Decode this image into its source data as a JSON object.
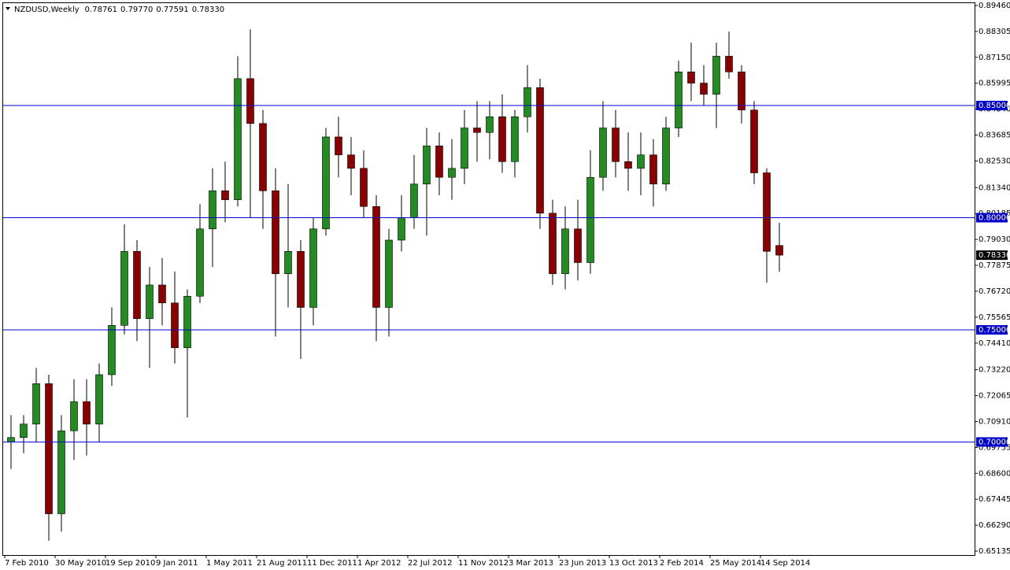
{
  "chart_data": {
    "type": "candlestick",
    "title": "NZDUSD,Weekly",
    "header_values": [
      "0.78761",
      "0.79770",
      "0.77591",
      "0.78330"
    ],
    "up_color": "#228b22",
    "down_color": "#8b0000",
    "wick_color": "#000000",
    "level_color": "#0000cd",
    "categories": [
      "7 Feb 2010",
      null,
      null,
      null,
      "30 May 2010",
      null,
      null,
      null,
      "19 Sep 2010",
      null,
      null,
      null,
      "9 Jan 2011",
      null,
      null,
      null,
      "1 May 2011",
      null,
      null,
      null,
      "21 Aug 2011",
      null,
      null,
      null,
      "11 Dec 2011",
      null,
      null,
      null,
      "1 Apr 2012",
      null,
      null,
      null,
      "22 Jul 2012",
      null,
      null,
      null,
      "11 Nov 2012",
      null,
      null,
      null,
      "3 Mar 2013",
      null,
      null,
      null,
      "23 Jun 2013",
      null,
      null,
      null,
      "13 Oct 2013",
      null,
      null,
      null,
      "2 Feb 2014",
      null,
      null,
      null,
      "25 May 2014",
      null,
      null,
      null,
      "14 Sep 2014",
      null
    ],
    "ohlc": [
      [
        0.7,
        0.712,
        0.688,
        0.702
      ],
      [
        0.702,
        0.712,
        0.695,
        0.708
      ],
      [
        0.708,
        0.733,
        0.7,
        0.726
      ],
      [
        0.726,
        0.73,
        0.656,
        0.668
      ],
      [
        0.668,
        0.712,
        0.66,
        0.705
      ],
      [
        0.705,
        0.728,
        0.692,
        0.718
      ],
      [
        0.718,
        0.728,
        0.694,
        0.708
      ],
      [
        0.708,
        0.735,
        0.7,
        0.73
      ],
      [
        0.73,
        0.76,
        0.725,
        0.752
      ],
      [
        0.752,
        0.797,
        0.748,
        0.785
      ],
      [
        0.785,
        0.79,
        0.745,
        0.755
      ],
      [
        0.755,
        0.778,
        0.733,
        0.77
      ],
      [
        0.77,
        0.782,
        0.752,
        0.762
      ],
      [
        0.762,
        0.776,
        0.735,
        0.742
      ],
      [
        0.742,
        0.768,
        0.711,
        0.765
      ],
      [
        0.765,
        0.806,
        0.762,
        0.795
      ],
      [
        0.795,
        0.822,
        0.778,
        0.812
      ],
      [
        0.812,
        0.825,
        0.798,
        0.808
      ],
      [
        0.808,
        0.872,
        0.805,
        0.862
      ],
      [
        0.862,
        0.884,
        0.8,
        0.842
      ],
      [
        0.842,
        0.848,
        0.795,
        0.812
      ],
      [
        0.812,
        0.822,
        0.747,
        0.775
      ],
      [
        0.775,
        0.815,
        0.76,
        0.785
      ],
      [
        0.785,
        0.79,
        0.737,
        0.76
      ],
      [
        0.76,
        0.8,
        0.752,
        0.795
      ],
      [
        0.795,
        0.84,
        0.792,
        0.836
      ],
      [
        0.836,
        0.845,
        0.818,
        0.828
      ],
      [
        0.828,
        0.836,
        0.81,
        0.822
      ],
      [
        0.822,
        0.83,
        0.8,
        0.805
      ],
      [
        0.805,
        0.81,
        0.745,
        0.76
      ],
      [
        0.76,
        0.795,
        0.747,
        0.79
      ],
      [
        0.79,
        0.81,
        0.785,
        0.8
      ],
      [
        0.8,
        0.828,
        0.795,
        0.815
      ],
      [
        0.815,
        0.84,
        0.792,
        0.832
      ],
      [
        0.832,
        0.838,
        0.81,
        0.818
      ],
      [
        0.818,
        0.835,
        0.808,
        0.822
      ],
      [
        0.822,
        0.848,
        0.815,
        0.84
      ],
      [
        0.84,
        0.852,
        0.825,
        0.838
      ],
      [
        0.838,
        0.852,
        0.826,
        0.845
      ],
      [
        0.845,
        0.855,
        0.82,
        0.825
      ],
      [
        0.825,
        0.848,
        0.818,
        0.845
      ],
      [
        0.845,
        0.868,
        0.838,
        0.858
      ],
      [
        0.858,
        0.862,
        0.795,
        0.802
      ],
      [
        0.802,
        0.808,
        0.77,
        0.775
      ],
      [
        0.775,
        0.805,
        0.768,
        0.795
      ],
      [
        0.795,
        0.808,
        0.772,
        0.78
      ],
      [
        0.78,
        0.83,
        0.775,
        0.818
      ],
      [
        0.818,
        0.852,
        0.812,
        0.84
      ],
      [
        0.84,
        0.848,
        0.818,
        0.825
      ],
      [
        0.825,
        0.838,
        0.812,
        0.822
      ],
      [
        0.822,
        0.838,
        0.81,
        0.828
      ],
      [
        0.828,
        0.835,
        0.805,
        0.815
      ],
      [
        0.815,
        0.845,
        0.812,
        0.84
      ],
      [
        0.84,
        0.87,
        0.836,
        0.865
      ],
      [
        0.865,
        0.878,
        0.852,
        0.86
      ],
      [
        0.86,
        0.868,
        0.85,
        0.855
      ],
      [
        0.855,
        0.878,
        0.84,
        0.872
      ],
      [
        0.872,
        0.883,
        0.862,
        0.865
      ],
      [
        0.865,
        0.868,
        0.842,
        0.848
      ],
      [
        0.848,
        0.852,
        0.815,
        0.82
      ],
      [
        0.82,
        0.822,
        0.771,
        0.785
      ],
      [
        0.78761,
        0.7977,
        0.77591,
        0.7833
      ]
    ],
    "ylim": [
      0.6496,
      0.89565
    ],
    "yticks": [
      {
        "value": 0.8946,
        "label": "0.89460"
      },
      {
        "value": 0.88305,
        "label": "0.88305"
      },
      {
        "value": 0.8715,
        "label": "0.87150"
      },
      {
        "value": 0.85995,
        "label": "0.85995"
      },
      {
        "value": 0.8484,
        "label": "0.84840"
      },
      {
        "value": 0.83685,
        "label": "0.83685"
      },
      {
        "value": 0.8253,
        "label": "0.82530"
      },
      {
        "value": 0.8134,
        "label": "0.81340"
      },
      {
        "value": 0.80185,
        "label": "0.80185"
      },
      {
        "value": 0.7903,
        "label": "0.79030"
      },
      {
        "value": 0.77875,
        "label": "0.77875"
      },
      {
        "value": 0.7672,
        "label": "0.76720"
      },
      {
        "value": 0.75565,
        "label": "0.75565"
      },
      {
        "value": 0.7441,
        "label": "0.74410"
      },
      {
        "value": 0.7322,
        "label": "0.73220"
      },
      {
        "value": 0.72065,
        "label": "0.72065"
      },
      {
        "value": 0.7091,
        "label": "0.70910"
      },
      {
        "value": 0.69755,
        "label": "0.69755"
      },
      {
        "value": 0.686,
        "label": "0.68600"
      },
      {
        "value": 0.67445,
        "label": "0.67445"
      },
      {
        "value": 0.6629,
        "label": "0.66290"
      },
      {
        "value": 0.65135,
        "label": "0.65135"
      }
    ],
    "levels": [
      {
        "value": 0.85,
        "label": "0.85000"
      },
      {
        "value": 0.8,
        "label": "0.80000"
      },
      {
        "value": 0.75,
        "label": "0.75000"
      },
      {
        "value": 0.7,
        "label": "0.70000"
      }
    ],
    "price_label": {
      "value": 0.7833,
      "label": "0.78330"
    }
  }
}
